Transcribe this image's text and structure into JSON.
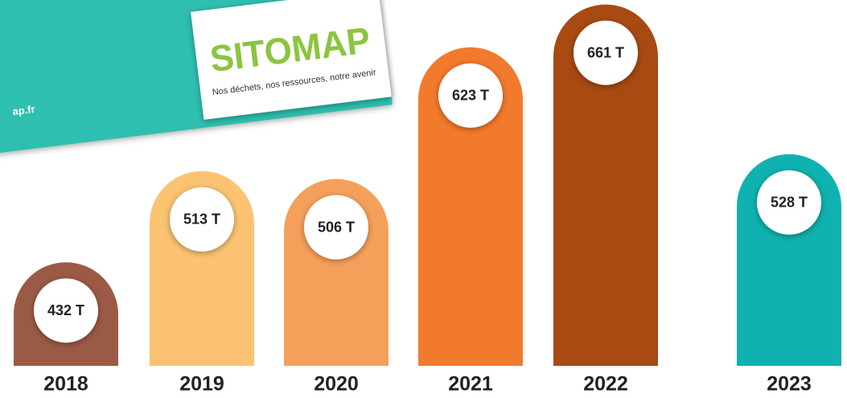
{
  "chart_data": {
    "type": "bar",
    "categories": [
      "2018",
      "2019",
      "2020",
      "2021",
      "2022",
      "2023"
    ],
    "values": [
      432,
      513,
      506,
      623,
      661,
      528
    ],
    "value_labels": [
      "432 T",
      "513 T",
      "506 T",
      "623 T",
      "661 T",
      "528 T"
    ],
    "colors": [
      "#9b5a46",
      "#fcc373",
      "#f5a05a",
      "#f27a2c",
      "#a84a12",
      "#0fb2b0"
    ],
    "ylim": [
      340,
      665
    ]
  },
  "logo": {
    "name": "SITOMAP",
    "tagline": "Nos déchets, nos ressources, notre avenir",
    "url": "ap.fr"
  }
}
